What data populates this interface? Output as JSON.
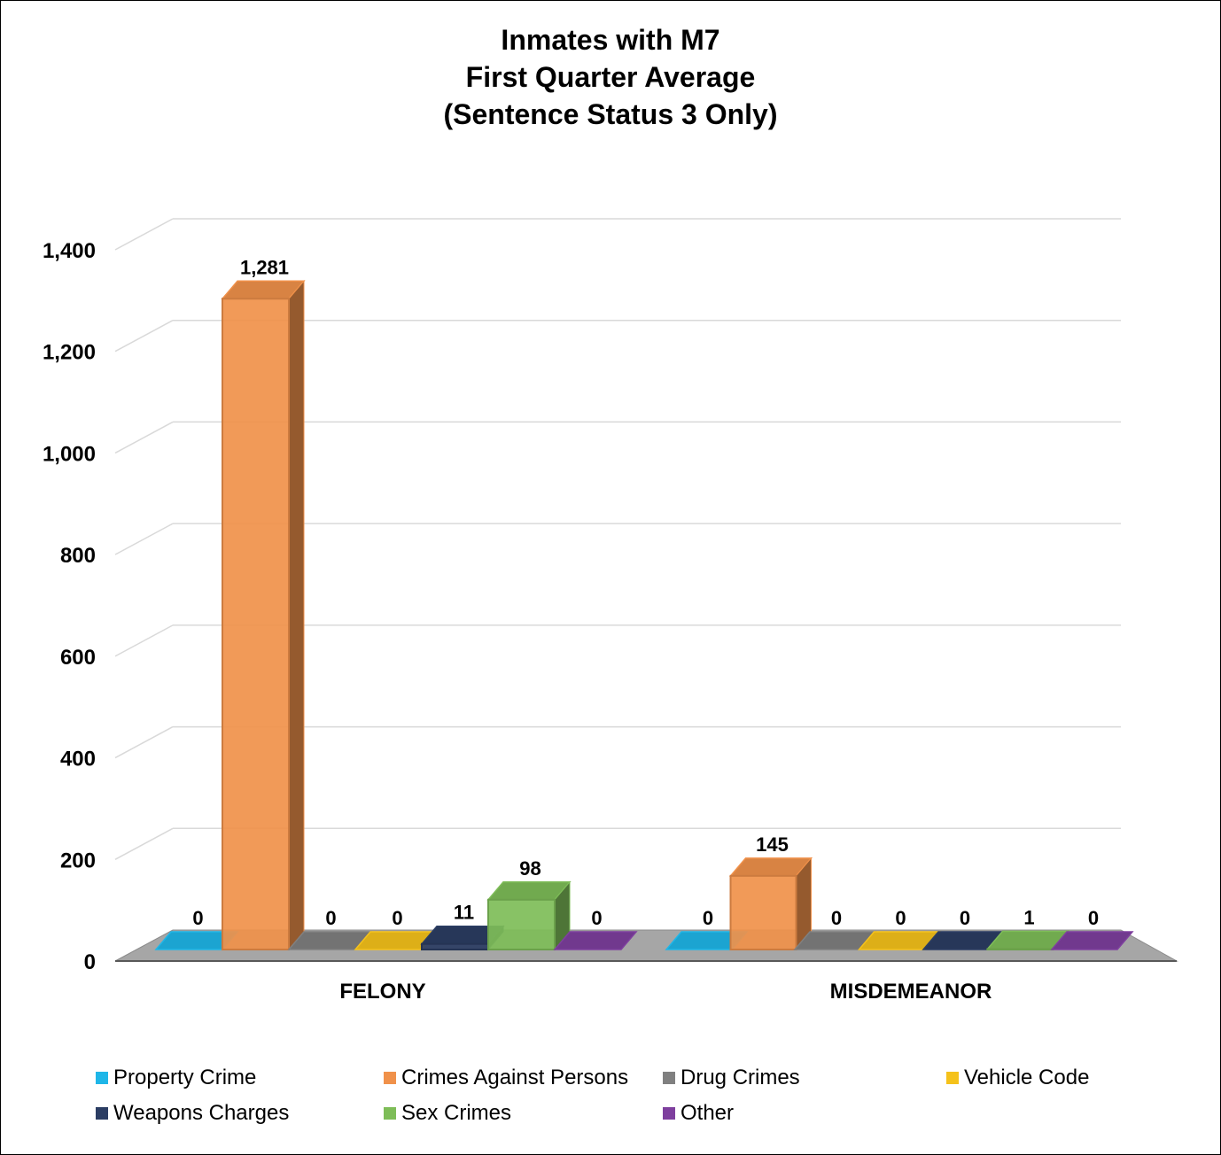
{
  "chart_data": {
    "type": "bar",
    "title_lines": [
      "Inmates with M7",
      "First Quarter Average",
      "(Sentence Status 3 Only)"
    ],
    "categories": [
      "FELONY",
      "MISDEMEANOR"
    ],
    "yticks": [
      "0",
      "200",
      "400",
      "600",
      "800",
      "1,000",
      "1,200",
      "1,400"
    ],
    "ylim": [
      0,
      1400
    ],
    "grid": true,
    "legend_position": "bottom",
    "series": [
      {
        "name": "Property Crime",
        "color": "#1FB6E8",
        "values": [
          0,
          0
        ],
        "labels": [
          "0",
          "0"
        ]
      },
      {
        "name": "Crimes Against Persons",
        "color": "#F0914A",
        "values": [
          1281,
          145
        ],
        "labels": [
          "1,281",
          "145"
        ]
      },
      {
        "name": "Drug Crimes",
        "color": "#808080",
        "values": [
          0,
          0
        ],
        "labels": [
          "0",
          "0"
        ]
      },
      {
        "name": "Vehicle Code",
        "color": "#F5C21B",
        "values": [
          0,
          0
        ],
        "labels": [
          "0",
          "0"
        ]
      },
      {
        "name": "Weapons Charges",
        "color": "#2B3D63",
        "values": [
          11,
          0
        ],
        "labels": [
          "11",
          "0"
        ]
      },
      {
        "name": "Sex Crimes",
        "color": "#7EBD58",
        "values": [
          98,
          1
        ],
        "labels": [
          "98",
          "1"
        ]
      },
      {
        "name": "Other",
        "color": "#7E3F9E",
        "values": [
          0,
          0
        ],
        "labels": [
          "0",
          "0"
        ]
      }
    ]
  }
}
